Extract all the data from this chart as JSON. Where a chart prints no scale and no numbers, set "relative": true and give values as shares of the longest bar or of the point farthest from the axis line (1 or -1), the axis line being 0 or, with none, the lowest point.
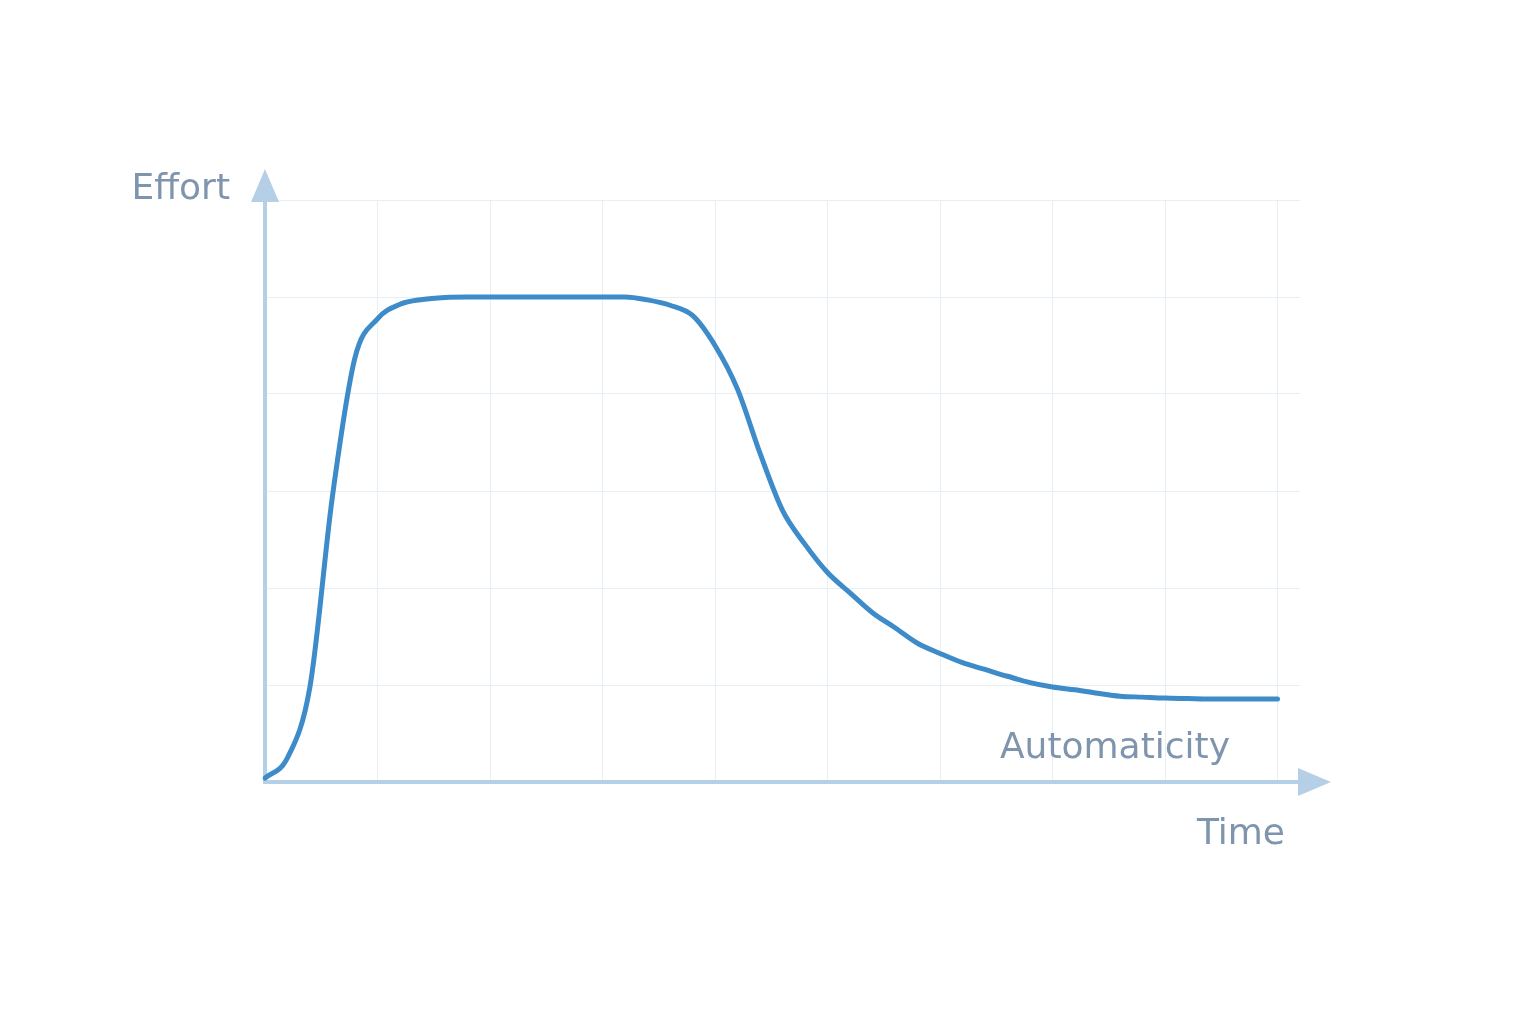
{
  "chart_data": {
    "type": "line",
    "relative": true,
    "ylabel": "Effort",
    "xlabel": "Time",
    "annotations": [
      "Automaticity"
    ],
    "grid": true,
    "tick_labels": false,
    "marker": "none",
    "line_style": "solid",
    "categories": [
      null,
      null,
      null,
      null,
      null,
      null,
      null,
      null,
      null,
      null,
      null,
      null,
      null,
      null,
      null,
      null,
      null,
      null,
      null,
      null,
      null,
      null,
      null,
      null,
      null,
      null,
      null,
      null,
      null,
      null,
      null,
      null,
      null,
      null,
      null,
      null,
      null,
      null,
      null,
      null,
      null,
      null,
      null,
      null,
      null,
      null,
      null
    ],
    "series": [
      {
        "color": "#3d8bc9",
        "values": [
          0.008,
          0.05,
          0.197,
          0.59,
          0.875,
          0.955,
          0.985,
          0.995,
          0.999,
          1,
          1,
          1,
          1,
          1,
          1,
          1,
          1,
          0.994,
          0.983,
          0.962,
          0.9,
          0.81,
          0.678,
          0.56,
          0.49,
          0.432,
          0.39,
          0.349,
          0.318,
          0.286,
          0.265,
          0.246,
          0.232,
          0.218,
          0.205,
          0.196,
          0.19,
          0.183,
          0.177,
          0.175,
          0.173,
          0.172,
          0.171,
          0.171,
          0.171,
          0.171,
          null
        ]
      }
    ]
  }
}
